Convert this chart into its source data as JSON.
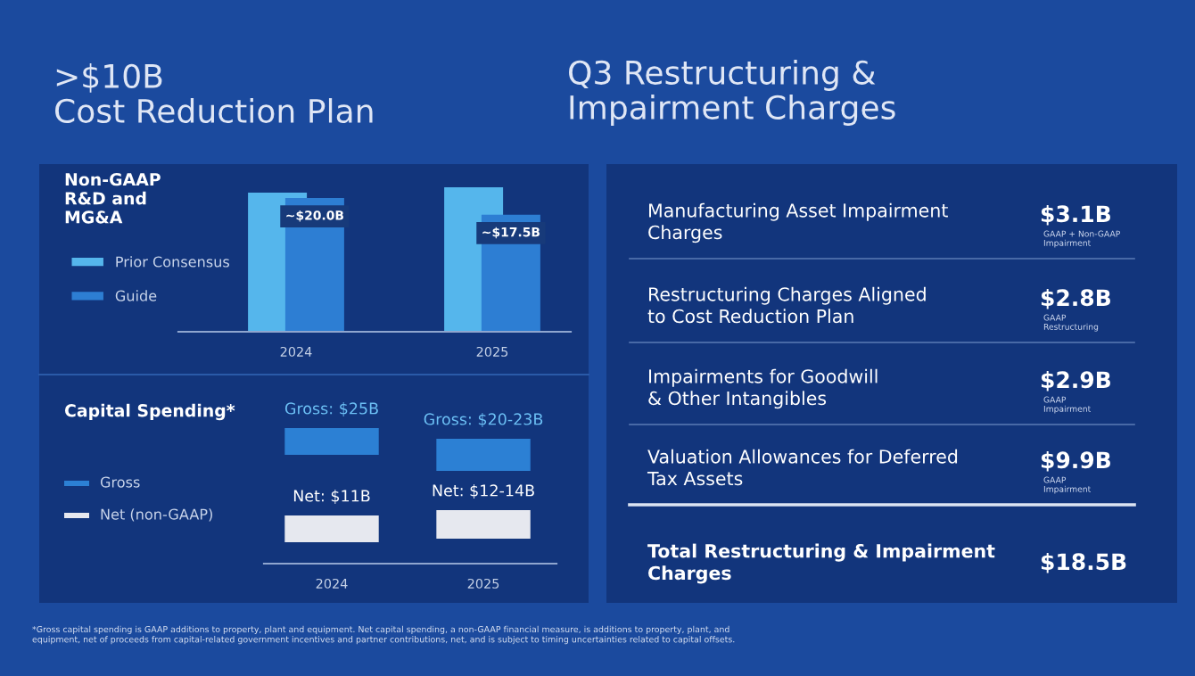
{
  "chart_data": [
    {
      "type": "bar",
      "title": ">$10B\nCost Reduction Plan",
      "subtitle": "Non-GAAP\nR&D and\nMG&A",
      "categories": [
        "2024",
        "2025"
      ],
      "legend": "left",
      "series": [
        {
          "name": "Prior Consensus",
          "color": "#55b6ec",
          "values": [
            20.8,
            21.6
          ]
        },
        {
          "name": "Guide",
          "color": "#2d7ed3",
          "values": [
            20.0,
            17.5
          ],
          "value_labels": [
            "~$20.0B",
            "~$17.5B"
          ]
        }
      ]
    },
    {
      "type": "other",
      "title": "Capital Spending*",
      "categories": [
        "2024",
        "2025"
      ],
      "annotations": [
        "Gross",
        "Net (non-GAAP)",
        "Gross: $25B",
        "Gross: $20-23B",
        "Net: $11B",
        "Net: $12-14B",
        "*Gross capital spending is GAAP additions to property, plant and equipment. Net capital spending, a non-GAAP financial measure, is additions to property, plant, and\nequipment, net of proceeds from capital-related government incentives and partner contributions, net, and is subject to timing uncertainties related to capital offsets."
      ]
    },
    {
      "type": "other",
      "title": "Q3 Restructuring &\nImpairment Charges",
      "annotations": [
        "Manufacturing Asset Impairment\nCharges",
        "$3.1B",
        "GAAP + Non-GAAP\nImpairment",
        "Restructuring Charges Aligned\nto Cost Reduction Plan",
        "$2.8B",
        "GAAP\nRestructuring",
        "Impairments for Goodwill\n& Other Intangibles",
        "$2.9B",
        "GAAP\nImpairment",
        "Valuation Allowances for Deferred\nTax Assets",
        "$9.9B",
        "GAAP\nImpairment",
        "Total Restructuring & Impairment\nCharges",
        "$18.5B"
      ]
    }
  ]
}
